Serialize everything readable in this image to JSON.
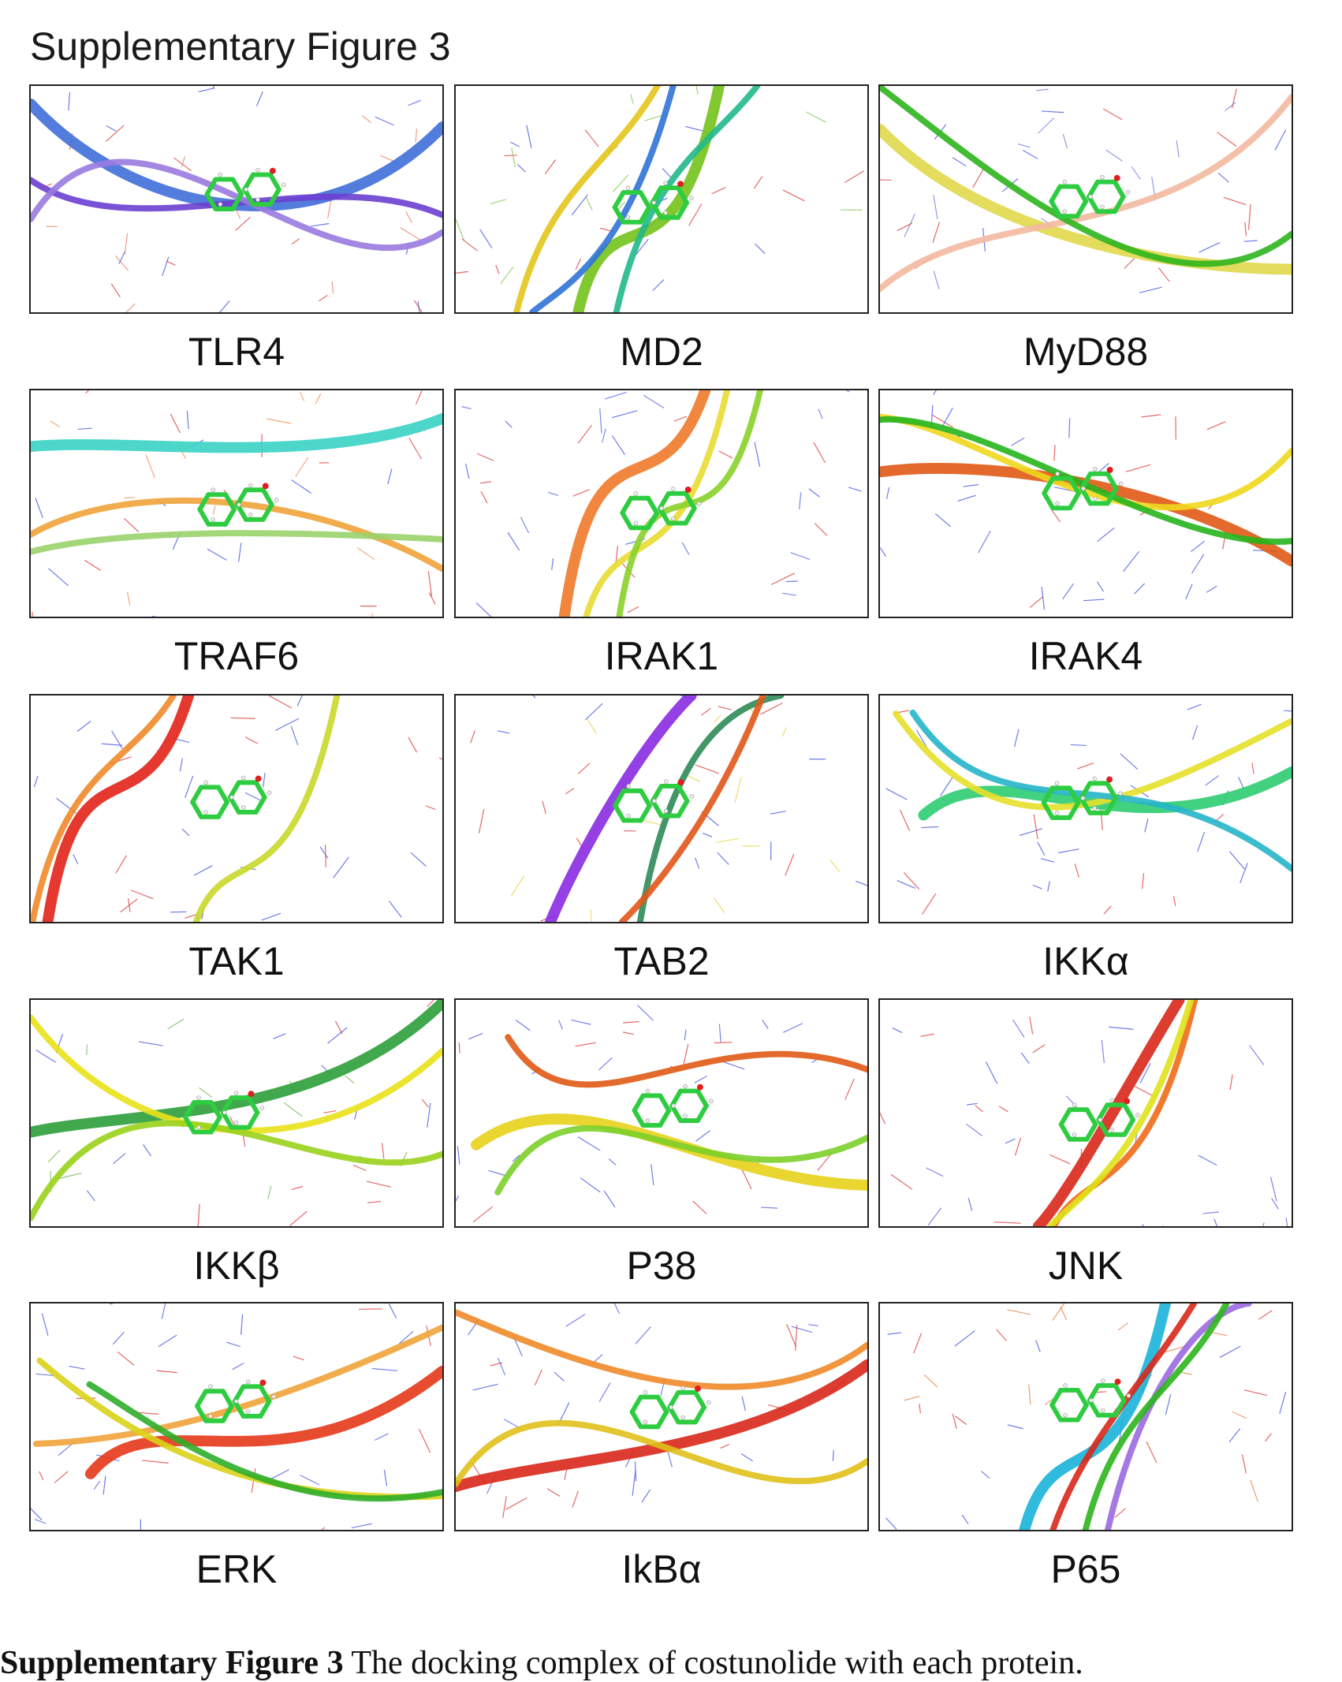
{
  "figure": {
    "title": "Supplementary Figure 3",
    "caption_bold": "Supplementary Figure 3",
    "caption_text": " The docking complex of costunolide with each protein."
  },
  "panels": [
    {
      "label": "TLR4",
      "ribbons": [
        "#3f6fd8",
        "#6a3fd0",
        "#9a7ae0"
      ],
      "residue_color": "#e87a5a",
      "ribbon_kind": "loop"
    },
    {
      "label": "MD2",
      "ribbons": [
        "#74c21a",
        "#2f73d6",
        "#21b98a",
        "#e3c51b"
      ],
      "residue_color": "#7cc64a",
      "ribbon_kind": "sheet"
    },
    {
      "label": "MyD88",
      "ribbons": [
        "#e0d84a",
        "#f3b9a0",
        "#2db51c"
      ],
      "residue_color": "#6c79d8",
      "ribbon_kind": "loop"
    },
    {
      "label": "TRAF6",
      "ribbons": [
        "#3ad2c4",
        "#f0a33a",
        "#9ad26c"
      ],
      "residue_color": "#f08d52",
      "ribbon_kind": "loop"
    },
    {
      "label": "IRAK1",
      "ribbons": [
        "#f07a2a",
        "#e8dc32",
        "#8ad22a"
      ],
      "residue_color": "#4f61e0",
      "ribbon_kind": "sheet"
    },
    {
      "label": "IRAK4",
      "ribbons": [
        "#e05a15",
        "#f0d81e",
        "#26b51c"
      ],
      "residue_color": "#4450e0",
      "ribbon_kind": "loop"
    },
    {
      "label": "TAK1",
      "ribbons": [
        "#e2241a",
        "#f08a2a",
        "#c9d82a"
      ],
      "residue_color": "#3d4fe0",
      "ribbon_kind": "sheet"
    },
    {
      "label": "TAB2",
      "ribbons": [
        "#8a2be2",
        "#2e8b57",
        "#e2561a"
      ],
      "residue_color": "#e3d33a",
      "ribbon_kind": "sheet"
    },
    {
      "label": "IKKα",
      "ribbons": [
        "#2ecc71",
        "#e7e02a",
        "#26b5c9"
      ],
      "residue_color": "#4350e0",
      "ribbon_kind": "helix"
    },
    {
      "label": "IKKβ",
      "ribbons": [
        "#2e9e3a",
        "#e9e21a",
        "#9ad21c"
      ],
      "residue_color": "#6fb64a",
      "ribbon_kind": "loop"
    },
    {
      "label": "P38",
      "ribbons": [
        "#e8d11a",
        "#7ccf2a",
        "#e05a15"
      ],
      "residue_color": "#4a5ae0",
      "ribbon_kind": "helix"
    },
    {
      "label": "JNK",
      "ribbons": [
        "#d8281a",
        "#f06a1a",
        "#e0e21a"
      ],
      "residue_color": "#5a5ae0",
      "ribbon_kind": "sheet"
    },
    {
      "label": "ERK",
      "ribbons": [
        "#e5391a",
        "#f0a33a",
        "#d9d31a",
        "#2fae2a"
      ],
      "residue_color": "#4a5ae0",
      "ribbon_kind": "helix"
    },
    {
      "label": "IkBα",
      "ribbons": [
        "#d8281a",
        "#f08a2a",
        "#e0c01a"
      ],
      "residue_color": "#4a5ae0",
      "ribbon_kind": "loop"
    },
    {
      "label": "P65",
      "ribbons": [
        "#1ab3d9",
        "#9a6ae0",
        "#d8281a",
        "#2db51c"
      ],
      "residue_color": "#e87a3a",
      "ribbon_kind": "sheet"
    }
  ],
  "ligand_color": "#2ecc40"
}
